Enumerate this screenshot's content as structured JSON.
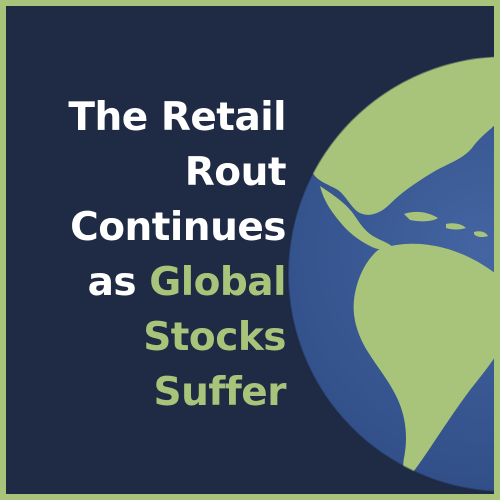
{
  "headline": {
    "line1": "The Retail",
    "line2": "Rout",
    "line3": "Continues",
    "line4_prefix": "as",
    "line4_highlight": "Global",
    "line5": "Stocks",
    "line6": "Suffer"
  },
  "colors": {
    "background": "#1f2b45",
    "accent": "#a8c47a",
    "text": "#ffffff",
    "ocean": "#3a5a94",
    "land": "#a8c47a"
  },
  "illustration": "globe-icon"
}
